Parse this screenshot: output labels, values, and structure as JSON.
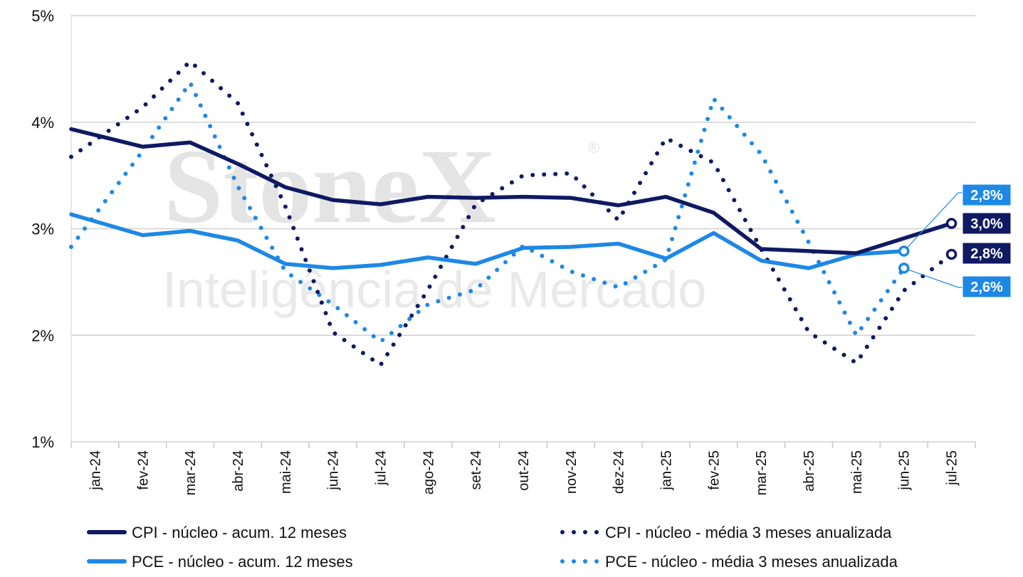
{
  "chart_data": {
    "type": "line",
    "categories": [
      "jan-24",
      "fev-24",
      "mar-24",
      "abr-24",
      "mai-24",
      "jun-24",
      "jul-24",
      "ago-24",
      "set-24",
      "out-24",
      "nov-24",
      "dez-24",
      "jan-25",
      "fev-25",
      "mar-25",
      "abr-25",
      "mai-25",
      "jun-25",
      "jul-25"
    ],
    "y_ticks": [
      "1%",
      "2%",
      "3%",
      "4%",
      "5%"
    ],
    "ylim": [
      1,
      5
    ],
    "grid": "horizontal",
    "legend_position": "bottom",
    "series": [
      {
        "name": "CPI - núcleo - acum. 12 meses",
        "style": "solid",
        "color": "#0f1a63",
        "values": [
          3.88,
          3.77,
          3.81,
          3.61,
          3.39,
          3.27,
          3.23,
          3.3,
          3.29,
          3.3,
          3.29,
          3.22,
          3.3,
          3.15,
          2.81,
          2.79,
          2.77,
          2.91,
          3.05
        ]
      },
      {
        "name": "PCE - núcleo - acum. 12 meses",
        "style": "solid",
        "color": "#1e88e5",
        "values": [
          3.07,
          2.94,
          2.98,
          2.89,
          2.67,
          2.63,
          2.66,
          2.73,
          2.67,
          2.82,
          2.83,
          2.86,
          2.72,
          2.96,
          2.7,
          2.63,
          2.76,
          2.79,
          null
        ]
      },
      {
        "name": "CPI - núcleo - média 3 meses anualizada",
        "style": "dotted",
        "color": "#0f1a63",
        "values": [
          3.83,
          4.14,
          4.57,
          4.18,
          3.21,
          2.03,
          1.72,
          2.43,
          3.23,
          3.5,
          3.52,
          3.08,
          3.85,
          3.62,
          2.81,
          2.03,
          1.74,
          2.42,
          2.76
        ]
      },
      {
        "name": "PCE - núcleo - média 3 meses anualizada",
        "style": "dotted",
        "color": "#1e88e5",
        "values": [
          3.13,
          3.73,
          4.37,
          3.4,
          2.6,
          2.29,
          1.94,
          2.29,
          2.43,
          2.84,
          2.6,
          2.45,
          2.71,
          4.22,
          3.7,
          2.87,
          2.0,
          2.63,
          null
        ]
      }
    ],
    "callouts": [
      {
        "label": "2,8%",
        "color": "#1e88e5",
        "series_index": 1
      },
      {
        "label": "3,0%",
        "color": "#0f1a63",
        "series_index": 0
      },
      {
        "label": "2,8%",
        "color": "#0f1a63",
        "series_index": 2
      },
      {
        "label": "2,6%",
        "color": "#1e88e5",
        "series_index": 3
      }
    ]
  },
  "watermark": {
    "logo": "StoneX",
    "registered": "®",
    "subtitle": "Inteligência de Mercado"
  }
}
